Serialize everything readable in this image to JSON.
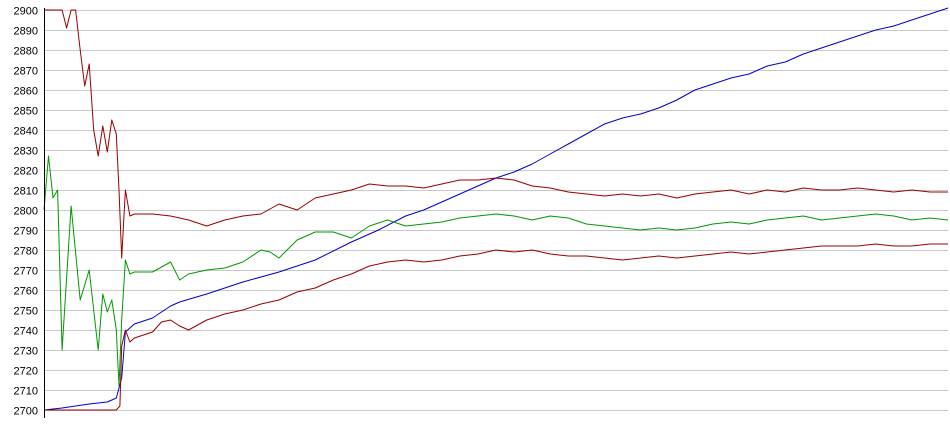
{
  "chart_data": {
    "type": "line",
    "title": "",
    "xlabel": "",
    "ylabel": "",
    "ylim": [
      2700,
      2900
    ],
    "yticks": [
      2700,
      2710,
      2720,
      2730,
      2740,
      2750,
      2760,
      2770,
      2780,
      2790,
      2800,
      2810,
      2820,
      2830,
      2840,
      2850,
      2860,
      2870,
      2880,
      2890,
      2900
    ],
    "xlim": [
      0,
      100
    ],
    "grid": true,
    "legend": "none",
    "colors": {
      "grid": "#c8c8c8",
      "axis": "#000000",
      "background": "#ffffff"
    },
    "series": [
      {
        "color": "#0000cc",
        "x": [
          0,
          2,
          5,
          7,
          8,
          8.6,
          9,
          10,
          12,
          13,
          14,
          15,
          18,
          22,
          26,
          30,
          34,
          37,
          40,
          42,
          44,
          46,
          48,
          50,
          52,
          54,
          56,
          58,
          60,
          62,
          64,
          66,
          68,
          70,
          72,
          74,
          76,
          78,
          80,
          82,
          83,
          84,
          86,
          88,
          90,
          92,
          94,
          96,
          98,
          100
        ],
        "y": [
          2700,
          2701,
          2703,
          2704,
          2706,
          2716,
          2739,
          2743,
          2746,
          2749,
          2752,
          2754,
          2758,
          2764,
          2769,
          2775,
          2784,
          2790,
          2797,
          2800,
          2804,
          2808,
          2812,
          2816,
          2819,
          2823,
          2828,
          2833,
          2838,
          2843,
          2846,
          2848,
          2851,
          2855,
          2860,
          2863,
          2866,
          2868,
          2872,
          2874,
          2876,
          2878,
          2881,
          2884,
          2887,
          2890,
          2892,
          2895,
          2898,
          2901
        ]
      },
      {
        "color": "#009900",
        "x": [
          0,
          0.5,
          1,
          1.5,
          2,
          3,
          4,
          5,
          6,
          6.5,
          7,
          7.5,
          8,
          8.3,
          8.6,
          9,
          9.5,
          10,
          12,
          14,
          15,
          16,
          18,
          20,
          22,
          24,
          25,
          26,
          28,
          30,
          32,
          34,
          36,
          38,
          40,
          42,
          44,
          46,
          48,
          50,
          52,
          54,
          56,
          58,
          60,
          62,
          64,
          66,
          68,
          70,
          72,
          74,
          76,
          78,
          80,
          82,
          84,
          86,
          88,
          90,
          92,
          94,
          96,
          98,
          100
        ],
        "y": [
          2800,
          2827,
          2806,
          2810,
          2730,
          2802,
          2755,
          2770,
          2730,
          2758,
          2749,
          2755,
          2740,
          2712,
          2745,
          2775,
          2768,
          2769,
          2769,
          2774,
          2765,
          2768,
          2770,
          2771,
          2774,
          2780,
          2779,
          2776,
          2785,
          2789,
          2789,
          2786,
          2792,
          2795,
          2792,
          2793,
          2794,
          2796,
          2797,
          2798,
          2797,
          2795,
          2797,
          2796,
          2793,
          2792,
          2791,
          2790,
          2791,
          2790,
          2791,
          2793,
          2794,
          2793,
          2795,
          2796,
          2797,
          2795,
          2796,
          2797,
          2798,
          2797,
          2795,
          2796,
          2795
        ]
      },
      {
        "color": "#990000",
        "x": [
          0,
          1,
          2,
          2.5,
          3,
          3.5,
          4,
          4.5,
          5,
          5.5,
          6,
          6.5,
          7,
          7.5,
          8,
          8.3,
          8.6,
          9,
          9.5,
          10,
          12,
          14,
          16,
          18,
          20,
          22,
          24,
          26,
          28,
          30,
          32,
          34,
          36,
          38,
          40,
          42,
          44,
          46,
          48,
          50,
          52,
          54,
          56,
          58,
          60,
          62,
          64,
          66,
          68,
          70,
          72,
          74,
          76,
          78,
          80,
          82,
          84,
          86,
          88,
          90,
          92,
          94,
          96,
          98,
          100
        ],
        "y": [
          2900,
          2900,
          2900,
          2891,
          2900,
          2900,
          2880,
          2862,
          2873,
          2840,
          2827,
          2842,
          2829,
          2845,
          2838,
          2810,
          2776,
          2810,
          2797,
          2798,
          2798,
          2797,
          2795,
          2792,
          2795,
          2797,
          2798,
          2803,
          2800,
          2806,
          2808,
          2810,
          2813,
          2812,
          2812,
          2811,
          2813,
          2815,
          2815,
          2816,
          2815,
          2812,
          2811,
          2809,
          2808,
          2807,
          2808,
          2807,
          2808,
          2806,
          2808,
          2809,
          2810,
          2808,
          2810,
          2809,
          2811,
          2810,
          2810,
          2811,
          2810,
          2809,
          2810,
          2809,
          2809
        ]
      },
      {
        "color": "#990000",
        "x": [
          0,
          2,
          4,
          6,
          8,
          8.4,
          8.6,
          9,
          9.5,
          10,
          12,
          13,
          14,
          15,
          16,
          18,
          20,
          22,
          24,
          26,
          28,
          30,
          32,
          34,
          36,
          38,
          40,
          42,
          44,
          46,
          48,
          50,
          52,
          54,
          56,
          58,
          60,
          62,
          64,
          66,
          68,
          70,
          72,
          74,
          76,
          78,
          80,
          82,
          84,
          86,
          88,
          90,
          92,
          94,
          96,
          98,
          100
        ],
        "y": [
          2700,
          2700,
          2700,
          2700,
          2700,
          2702,
          2732,
          2740,
          2734,
          2736,
          2739,
          2744,
          2745,
          2742,
          2740,
          2745,
          2748,
          2750,
          2753,
          2755,
          2759,
          2761,
          2765,
          2768,
          2772,
          2774,
          2775,
          2774,
          2775,
          2777,
          2778,
          2780,
          2779,
          2780,
          2778,
          2777,
          2777,
          2776,
          2775,
          2776,
          2777,
          2776,
          2777,
          2778,
          2779,
          2778,
          2779,
          2780,
          2781,
          2782,
          2782,
          2782,
          2783,
          2782,
          2782,
          2783,
          2783
        ]
      }
    ]
  }
}
